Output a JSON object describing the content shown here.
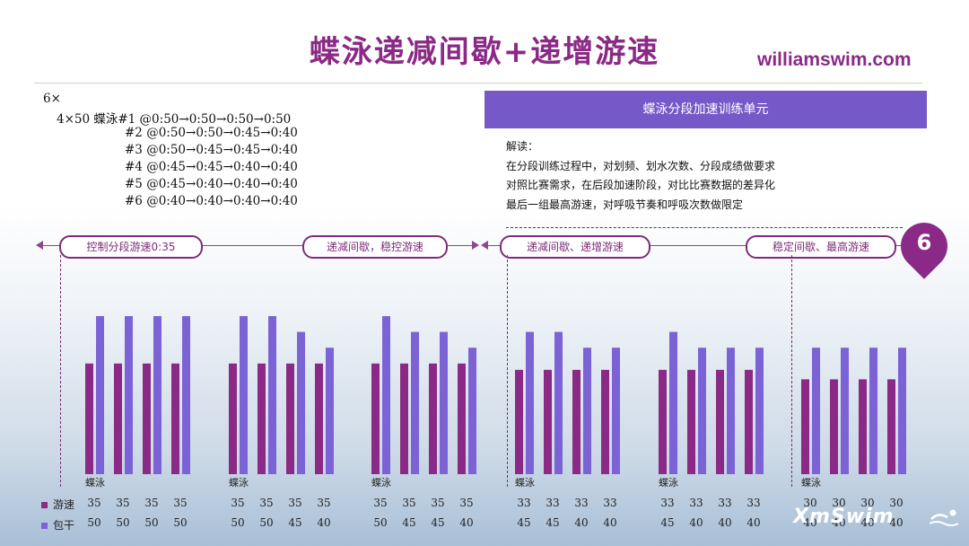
{
  "title": "蝶泳递减间歇+递增游速",
  "site": "williamswim.com",
  "set": {
    "reps": "6×",
    "lines": [
      "4×50 蝶泳#1 @0:50→0:50→0:50→0:50",
      "#2 @0:50→0:50→0:45→0:40",
      "#3 @0:50→0:45→0:45→0:40",
      "#4 @0:45→0:45→0:40→0:40",
      "#5 @0:45→0:40→0:40→0:40",
      "#6 @0:40→0:40→0:40→0:40"
    ]
  },
  "unit_title": "蝶泳分段加速训练单元",
  "notes": {
    "heading": "解读：",
    "lines": [
      "在分段训练过程中，对划频、划水次数、分段成绩做要求",
      "对照比赛需求，在后段加速阶段，对比比赛数据的差异化",
      "最后一组最高游速，对呼吸节奏和呼吸次数做限定"
    ]
  },
  "phases": [
    "控制分段游速0:35",
    "递减间歇，稳控游速",
    "递减间歇、递增游速",
    "稳定间歇、最高游速"
  ],
  "badge": "6",
  "logo": "XmSwim",
  "colors": {
    "speed": "#8b2a86",
    "interval": "#7b63d6",
    "accent": "#8b2a86",
    "unit_bar": "#7659c9"
  },
  "chart_data": {
    "type": "bar",
    "stroke_label": "蝶泳",
    "groups": [
      "#1",
      "#2",
      "#3",
      "#4",
      "#5",
      "#6"
    ],
    "series": [
      {
        "name": "游速",
        "values": [
          [
            35,
            35,
            35,
            35
          ],
          [
            35,
            35,
            35,
            35
          ],
          [
            35,
            35,
            35,
            35
          ],
          [
            33,
            33,
            33,
            33
          ],
          [
            33,
            33,
            33,
            33
          ],
          [
            30,
            30,
            30,
            30
          ]
        ]
      },
      {
        "name": "包干",
        "values": [
          [
            50,
            50,
            50,
            50
          ],
          [
            50,
            50,
            45,
            40
          ],
          [
            50,
            45,
            45,
            40
          ],
          [
            45,
            45,
            40,
            40
          ],
          [
            45,
            40,
            40,
            40
          ],
          [
            40,
            40,
            40,
            40
          ]
        ]
      }
    ]
  }
}
